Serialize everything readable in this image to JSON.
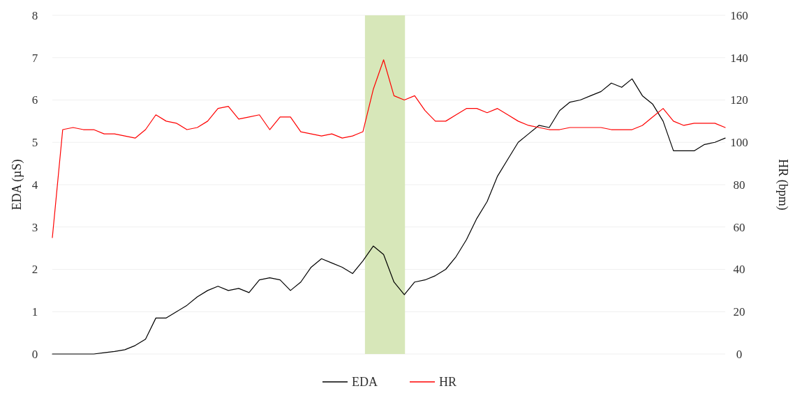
{
  "chart_data": {
    "type": "line",
    "ylabel": "EDA (µS)",
    "y2label": "HR (bpm)",
    "categories": [
      null,
      null,
      null,
      null,
      null,
      null,
      null,
      null,
      null,
      null,
      null,
      null,
      null,
      null,
      null,
      null,
      null,
      null,
      null,
      null,
      null,
      null,
      null,
      null,
      null,
      null,
      null,
      null,
      null,
      null,
      null,
      null,
      null,
      null,
      null,
      null,
      null,
      null,
      null,
      null,
      null,
      null,
      null,
      null,
      null,
      null,
      null,
      null,
      null,
      null,
      null,
      null,
      null,
      null,
      null,
      null,
      null,
      null,
      null,
      null,
      null,
      null,
      null,
      null,
      null,
      null
    ],
    "ylim": [
      0,
      8
    ],
    "yticks": [
      0,
      1,
      2,
      3,
      4,
      5,
      6,
      7,
      8
    ],
    "y2lim": [
      0,
      160
    ],
    "y2ticks": [
      0,
      20,
      40,
      60,
      80,
      100,
      120,
      140,
      160
    ],
    "grid": "y",
    "legend": "bottom",
    "series": [
      {
        "name": "EDA",
        "color": "#000000",
        "values": [
          0,
          0,
          0,
          0,
          0,
          0.03,
          0.06,
          0.1,
          0.2,
          0.35,
          0.85,
          0.85,
          1.0,
          1.15,
          1.35,
          1.5,
          1.6,
          1.5,
          1.55,
          1.45,
          1.75,
          1.8,
          1.75,
          1.5,
          1.7,
          2.05,
          2.25,
          2.15,
          2.05,
          1.9,
          2.2,
          2.55,
          2.35,
          1.7,
          1.4,
          1.7,
          1.75,
          1.85,
          2.0,
          2.3,
          2.7,
          3.2,
          3.6,
          4.2,
          4.6,
          5.0,
          5.2,
          5.4,
          5.35,
          5.75,
          5.95,
          6.0,
          6.1,
          6.2,
          6.4,
          6.3,
          6.5,
          6.1,
          5.9,
          5.5,
          4.8,
          4.8,
          4.8,
          4.95,
          5.0,
          5.1
        ]
      },
      {
        "name": "HR",
        "color": "#ff0000",
        "axis": "y2",
        "values": [
          55,
          106,
          107,
          106,
          106,
          104,
          104,
          103,
          102,
          106,
          113,
          110,
          109,
          106,
          107,
          110,
          116,
          117,
          111,
          112,
          113,
          106,
          112,
          112,
          105,
          104,
          103,
          104,
          102,
          103,
          105,
          125,
          139,
          122,
          120,
          122,
          115,
          110,
          110,
          113,
          116,
          116,
          114,
          116,
          113,
          110,
          108,
          107,
          106,
          106,
          107,
          107,
          107,
          107,
          106,
          106,
          106,
          108,
          112,
          116,
          110,
          108,
          109,
          109,
          109,
          107
        ]
      }
    ]
  }
}
